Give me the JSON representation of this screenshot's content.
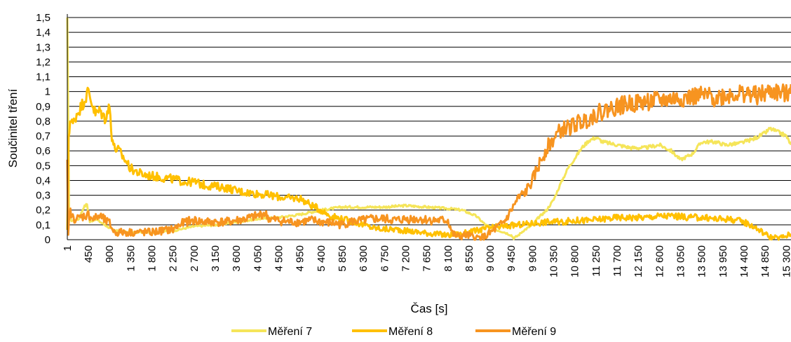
{
  "chart_data": {
    "type": "line",
    "title": "",
    "xlabel": "Čas [s]",
    "ylabel": "Součinitel tření",
    "xlim": [
      1,
      15400
    ],
    "ylim": [
      0,
      1.5
    ],
    "x_tick_labels": [
      "1",
      "450",
      "900",
      "1 350",
      "1 800",
      "2 250",
      "2 700",
      "3 150",
      "3 600",
      "4 050",
      "4 500",
      "4 950",
      "5 400",
      "5 850",
      "6 300",
      "6 750",
      "7 200",
      "7 650",
      "8 100",
      "8 550",
      "9 000",
      "9 450",
      "9 900",
      "10 350",
      "10 800",
      "11 250",
      "11 700",
      "12 150",
      "12 600",
      "13 050",
      "13 500",
      "13 950",
      "14 400",
      "14 850",
      "15 300"
    ],
    "y_tick_labels": [
      "0",
      "0,1",
      "0,2",
      "0,3",
      "0,4",
      "0,5",
      "0,6",
      "0,7",
      "0,8",
      "0,9",
      "1",
      "1,1",
      "1,2",
      "1,3",
      "1,4",
      "1,5"
    ],
    "grid": true,
    "legend_position": "bottom",
    "series": [
      {
        "name": "Měření 7",
        "color": "#f5e55a",
        "x": [
          1,
          40,
          90,
          150,
          250,
          350,
          420,
          480,
          600,
          800,
          1000,
          1350,
          1800,
          2250,
          2700,
          3150,
          3600,
          4050,
          4500,
          4950,
          5400,
          5850,
          6300,
          6750,
          7200,
          7650,
          8100,
          8400,
          8700,
          8900,
          9100,
          9300,
          9450,
          9500,
          9600,
          9700,
          9800,
          9900,
          10000,
          10100,
          10200,
          10350,
          10500,
          10650,
          10800,
          10950,
          11100,
          11250,
          11400,
          11700,
          12000,
          12300,
          12600,
          12850,
          13050,
          13300,
          13500,
          13800,
          14000,
          14300,
          14600,
          14850,
          14950,
          15100,
          15300,
          15400
        ],
        "y": [
          1.5,
          0.15,
          0.13,
          0.13,
          0.14,
          0.22,
          0.24,
          0.12,
          0.14,
          0.1,
          0.06,
          0.05,
          0.05,
          0.06,
          0.09,
          0.1,
          0.12,
          0.14,
          0.15,
          0.17,
          0.2,
          0.22,
          0.22,
          0.22,
          0.23,
          0.22,
          0.21,
          0.2,
          0.16,
          0.1,
          0.07,
          0.05,
          0.03,
          0.01,
          0.03,
          0.06,
          0.08,
          0.1,
          0.14,
          0.17,
          0.2,
          0.27,
          0.38,
          0.48,
          0.55,
          0.62,
          0.67,
          0.69,
          0.66,
          0.64,
          0.62,
          0.62,
          0.64,
          0.6,
          0.54,
          0.58,
          0.66,
          0.66,
          0.64,
          0.65,
          0.68,
          0.72,
          0.75,
          0.73,
          0.7,
          0.64
        ]
      },
      {
        "name": "Měření 8",
        "color": "#ffc000",
        "x": [
          1,
          30,
          60,
          120,
          200,
          300,
          400,
          450,
          500,
          600,
          700,
          800,
          900,
          950,
          1000,
          1100,
          1350,
          1600,
          1800,
          2000,
          2250,
          2500,
          2700,
          2900,
          3150,
          3400,
          3600,
          3800,
          4050,
          4300,
          4500,
          4700,
          4950,
          5200,
          5400,
          5600,
          5850,
          6100,
          6300,
          6500,
          6750,
          7000,
          7200,
          7500,
          7800,
          8100,
          8400,
          8700,
          9000,
          9300,
          9600,
          9900,
          10200,
          10500,
          10800,
          11100,
          11400,
          11700,
          12000,
          12300,
          12600,
          12900,
          13200,
          13500,
          13800,
          14100,
          14400,
          14600,
          14800,
          14950,
          15100,
          15250,
          15400
        ],
        "y": [
          0.05,
          0.7,
          0.8,
          0.78,
          0.85,
          0.9,
          0.97,
          1.0,
          0.95,
          0.85,
          0.87,
          0.82,
          0.9,
          0.7,
          0.62,
          0.6,
          0.48,
          0.44,
          0.43,
          0.42,
          0.41,
          0.39,
          0.39,
          0.37,
          0.36,
          0.35,
          0.33,
          0.32,
          0.31,
          0.3,
          0.29,
          0.28,
          0.28,
          0.23,
          0.2,
          0.16,
          0.14,
          0.12,
          0.1,
          0.08,
          0.07,
          0.07,
          0.06,
          0.05,
          0.04,
          0.03,
          0.04,
          0.06,
          0.08,
          0.09,
          0.1,
          0.11,
          0.12,
          0.12,
          0.13,
          0.13,
          0.14,
          0.15,
          0.15,
          0.15,
          0.16,
          0.16,
          0.15,
          0.15,
          0.14,
          0.14,
          0.12,
          0.09,
          0.05,
          0.02,
          0.01,
          0.02,
          0.04
        ]
      },
      {
        "name": "Měření 9",
        "color": "#f79420",
        "x": [
          1,
          20,
          50,
          100,
          200,
          350,
          450,
          550,
          700,
          800,
          900,
          1000,
          1200,
          1350,
          1600,
          1800,
          2000,
          2250,
          2400,
          2500,
          2700,
          2900,
          3150,
          3400,
          3600,
          3800,
          4050,
          4200,
          4300,
          4500,
          4700,
          4950,
          5200,
          5400,
          5700,
          5850,
          6000,
          6300,
          6500,
          6750,
          7000,
          7200,
          7500,
          7800,
          8000,
          8100,
          8200,
          8300,
          8500,
          8700,
          8900,
          9100,
          9300,
          9450,
          9600,
          9750,
          9900,
          10000,
          10100,
          10200,
          10350,
          10500,
          10700,
          10800,
          11000,
          11250,
          11500,
          11700,
          12000,
          12300,
          12600,
          12900,
          13200,
          13500,
          13800,
          14100,
          14400,
          14700,
          15000,
          15300,
          15400
        ],
        "y": [
          0.5,
          0.02,
          0.2,
          0.15,
          0.14,
          0.16,
          0.17,
          0.14,
          0.16,
          0.13,
          0.11,
          0.05,
          0.05,
          0.05,
          0.05,
          0.05,
          0.06,
          0.07,
          0.1,
          0.12,
          0.13,
          0.12,
          0.12,
          0.12,
          0.13,
          0.14,
          0.16,
          0.18,
          0.14,
          0.13,
          0.12,
          0.12,
          0.13,
          0.12,
          0.11,
          0.1,
          0.12,
          0.13,
          0.14,
          0.14,
          0.13,
          0.14,
          0.14,
          0.13,
          0.13,
          0.13,
          0.04,
          0.02,
          0.03,
          0.01,
          0.02,
          0.07,
          0.12,
          0.2,
          0.28,
          0.32,
          0.4,
          0.48,
          0.55,
          0.62,
          0.68,
          0.74,
          0.76,
          0.78,
          0.8,
          0.85,
          0.88,
          0.9,
          0.92,
          0.93,
          0.94,
          0.95,
          0.96,
          0.97,
          0.96,
          0.98,
          0.99,
          0.97,
          1.0,
          0.98,
          1.05
        ]
      }
    ]
  }
}
